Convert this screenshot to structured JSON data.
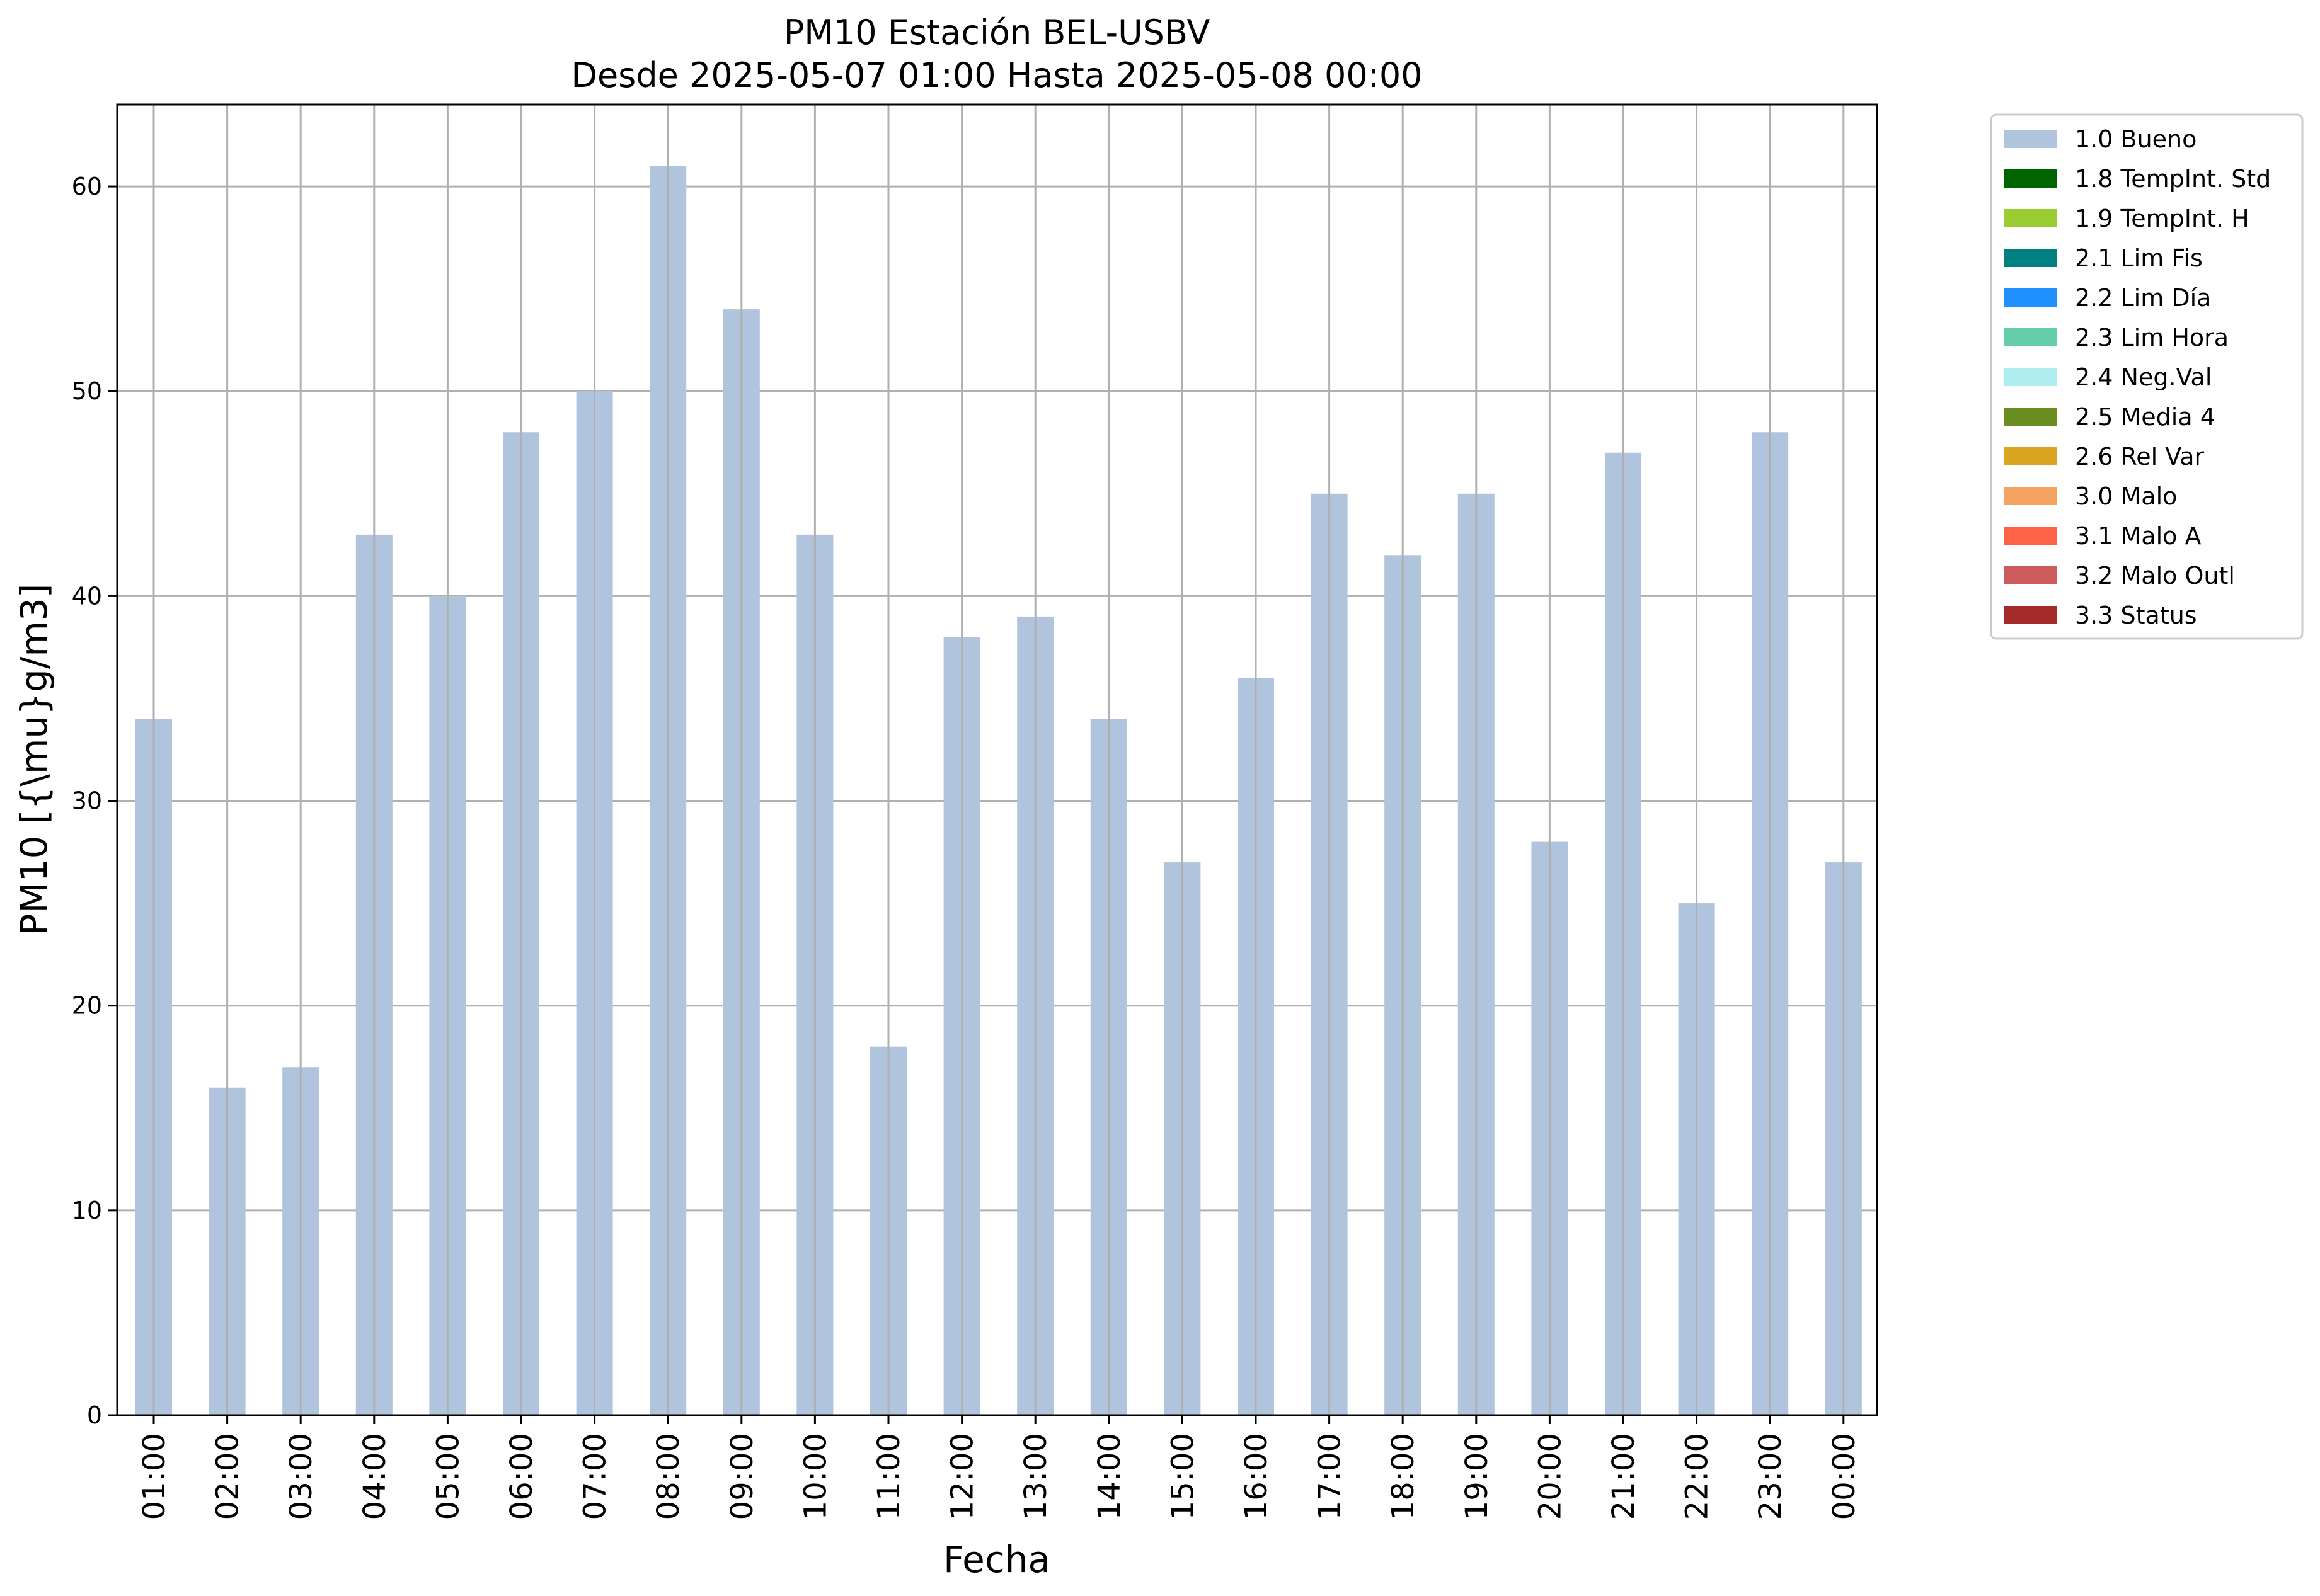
{
  "chart_data": {
    "type": "bar",
    "title": "PM10 Estación BEL-USBV",
    "subtitle": "Desde 2025-05-07 01:00 Hasta 2025-05-08 00:00",
    "xlabel": "Fecha",
    "ylabel": "PM10 [{\\mu}g/m3]",
    "ylim": [
      0,
      64
    ],
    "yticks": [
      0,
      10,
      20,
      30,
      40,
      50,
      60
    ],
    "grid": true,
    "legend_position": "outside-top-right",
    "categories": [
      "01:00",
      "02:00",
      "03:00",
      "04:00",
      "05:00",
      "06:00",
      "07:00",
      "08:00",
      "09:00",
      "10:00",
      "11:00",
      "12:00",
      "13:00",
      "14:00",
      "15:00",
      "16:00",
      "17:00",
      "18:00",
      "19:00",
      "20:00",
      "21:00",
      "22:00",
      "23:00",
      "00:00"
    ],
    "series": [
      {
        "name": "1.0 Bueno",
        "color": "#b0c4de",
        "values": [
          34,
          16,
          17,
          43,
          40,
          48,
          50,
          61,
          54,
          43,
          18,
          38,
          39,
          34,
          27,
          36,
          45,
          42,
          45,
          28,
          47,
          25,
          48,
          27
        ]
      }
    ],
    "legend": [
      {
        "label": "1.0 Bueno",
        "color": "#b0c4de"
      },
      {
        "label": "1.8 TempInt. Std",
        "color": "#006400"
      },
      {
        "label": "1.9 TempInt. H",
        "color": "#9acd32"
      },
      {
        "label": "2.1 Lim Fis",
        "color": "#008080"
      },
      {
        "label": "2.2 Lim Día",
        "color": "#1e90ff"
      },
      {
        "label": "2.3 Lim Hora",
        "color": "#66cdaa"
      },
      {
        "label": "2.4 Neg.Val",
        "color": "#afeeee"
      },
      {
        "label": "2.5 Media 4",
        "color": "#6b8e23"
      },
      {
        "label": "2.6 Rel Var",
        "color": "#daa520"
      },
      {
        "label": "3.0 Malo",
        "color": "#f4a460"
      },
      {
        "label": "3.1 Malo A",
        "color": "#ff6347"
      },
      {
        "label": "3.2 Malo Outl",
        "color": "#cd5c5c"
      },
      {
        "label": "3.3 Status",
        "color": "#a52a2a"
      }
    ]
  }
}
